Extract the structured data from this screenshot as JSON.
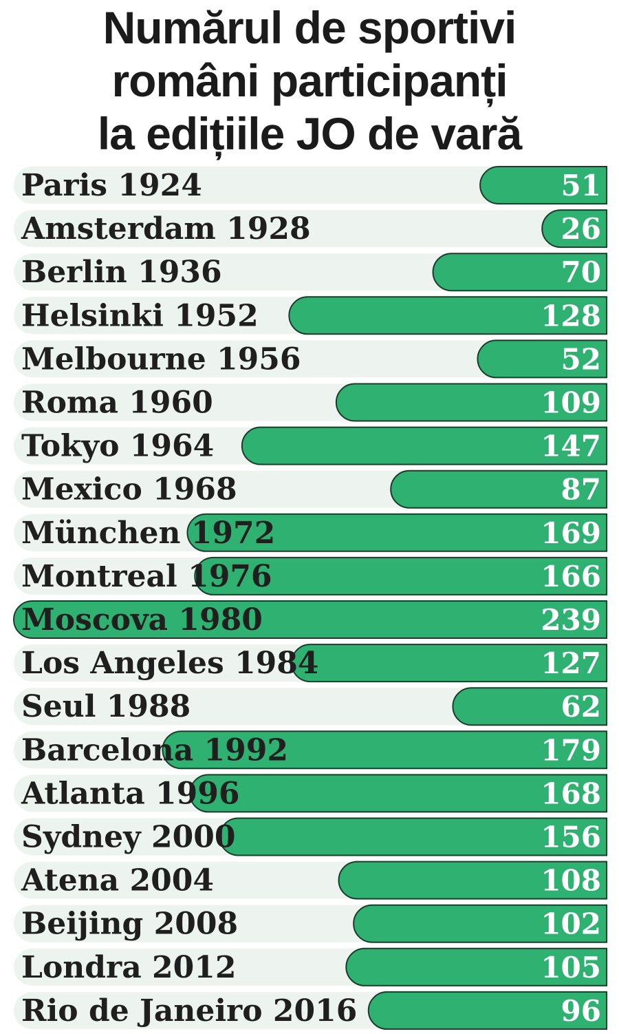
{
  "chart_data": {
    "type": "bar",
    "orientation": "horizontal",
    "title_lines": [
      "Numărul de sportivi",
      "români participanți",
      "la edițiile JO de vară"
    ],
    "categories": [
      "Paris 1924",
      "Amsterdam 1928",
      "Berlin 1936",
      "Helsinki 1952",
      "Melbourne 1956",
      "Roma 1960",
      "Tokyo 1964",
      "Mexico 1968",
      "München 1972",
      "Montreal 1976",
      "Moscova 1980",
      "Los Angeles 1984",
      "Seul 1988",
      "Barcelona 1992",
      "Atlanta 1996",
      "Sydney 2000",
      "Atena 2004",
      "Beijing 2008",
      "Londra 2012",
      "Rio de Janeiro 2016"
    ],
    "values": [
      51,
      26,
      70,
      128,
      52,
      109,
      147,
      87,
      169,
      166,
      239,
      127,
      62,
      179,
      168,
      156,
      108,
      102,
      105,
      96
    ],
    "xlim": [
      0,
      239
    ],
    "grid": false,
    "legend": "none",
    "colors": {
      "bar": "#2fb172",
      "bar_outline": "#1a3d2b",
      "track": "#edf4ef",
      "label_text": "#1f1f1f",
      "value_text": "#ffffff",
      "title_text": "#1b1b1b"
    }
  }
}
